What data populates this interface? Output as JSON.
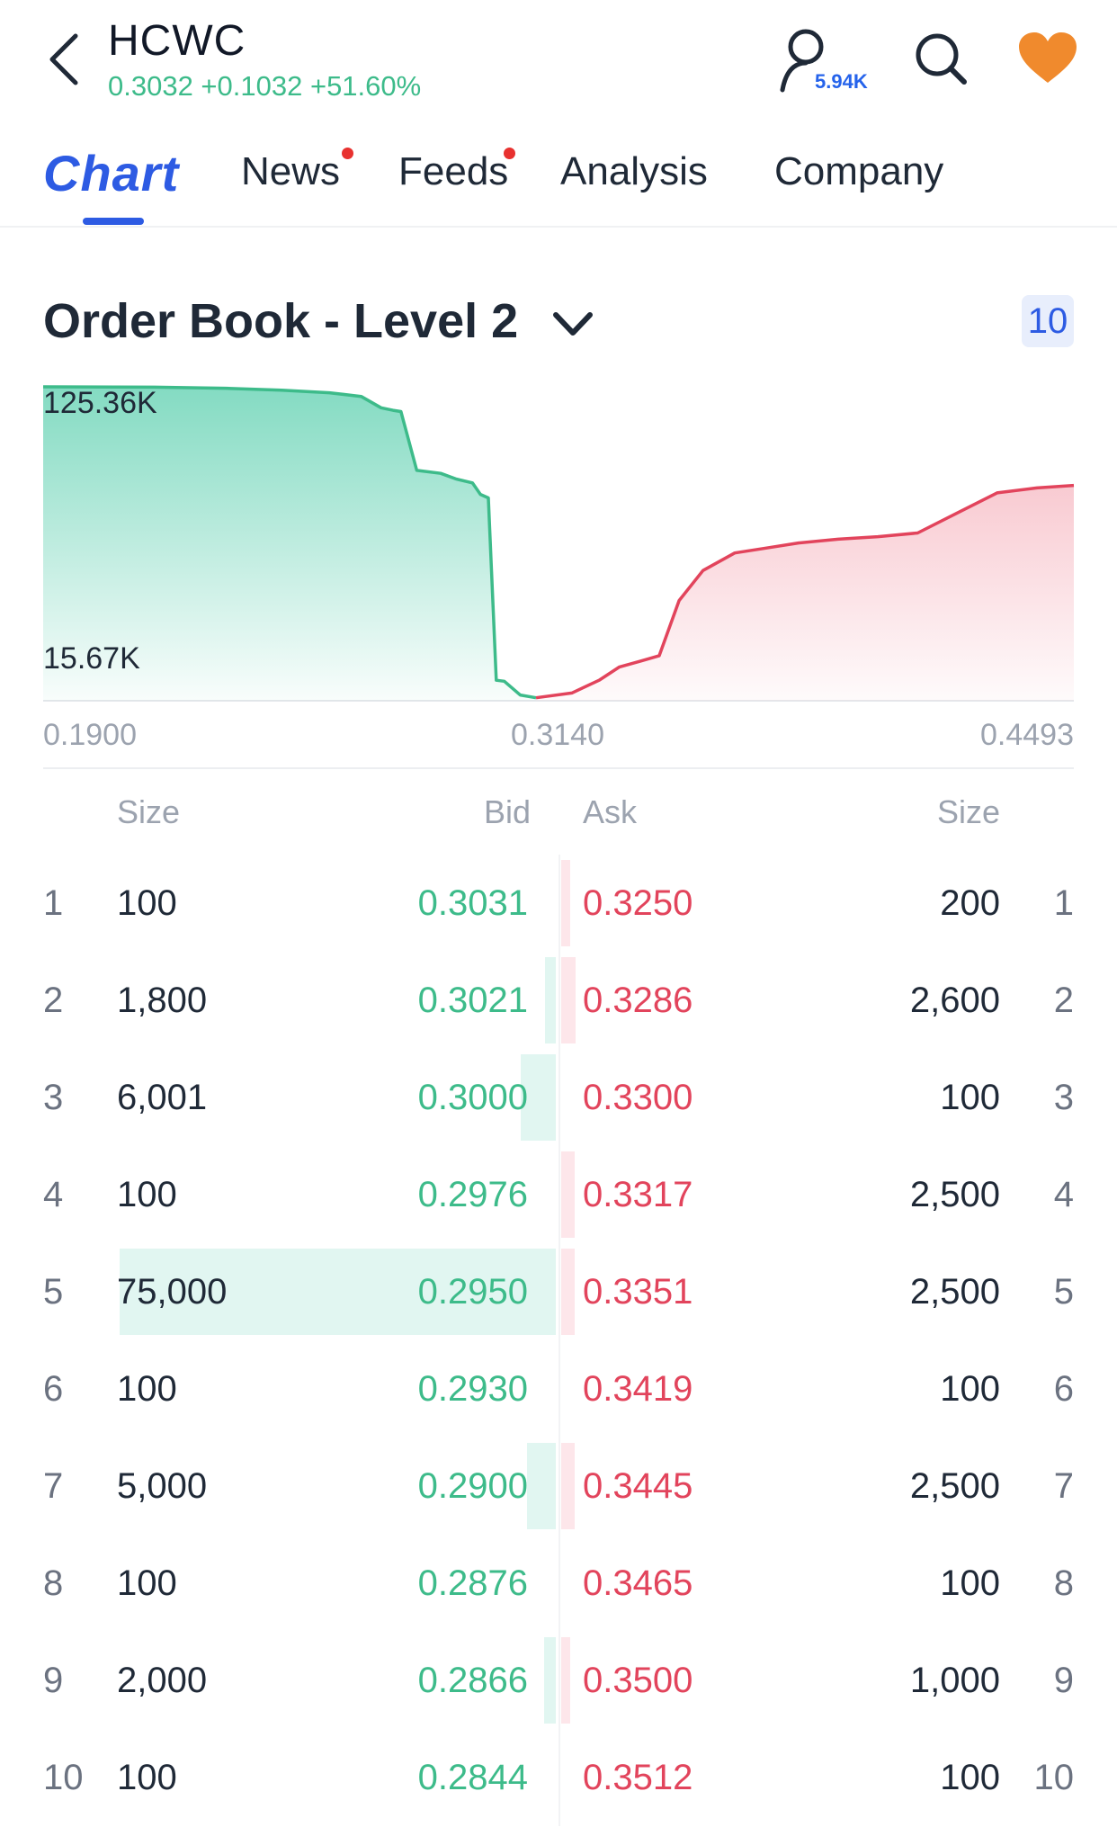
{
  "header": {
    "ticker": "HCWC",
    "quote": "0.3032 +0.1032 +51.60%",
    "followers": "5.94K",
    "quote_color": "#3dbb8a",
    "heart_color": "#f08a2d",
    "back_icon": "chevron-left-icon",
    "follow_icon": "person-icon",
    "search_icon": "search-icon",
    "favorite_icon": "heart-icon"
  },
  "tabs": [
    {
      "label": "Chart",
      "active": true
    },
    {
      "label": "News",
      "dot": true
    },
    {
      "label": "Feeds",
      "dot": true
    },
    {
      "label": "Analysis"
    },
    {
      "label": "Company"
    }
  ],
  "order_book": {
    "title": "Order Book - Level 2",
    "depth": "10",
    "y_top_label": "125.36K",
    "y_bottom_label": "15.67K",
    "x_labels": [
      "0.1900",
      "0.3140",
      "0.4493"
    ],
    "columns": {
      "size_left": "Size",
      "bid": "Bid",
      "ask": "Ask",
      "size_right": "Size"
    },
    "rows": [
      {
        "rank": "1",
        "bid_size": "100",
        "bid": "0.3031",
        "ask": "0.3250",
        "ask_size": "200"
      },
      {
        "rank": "2",
        "bid_size": "1,800",
        "bid": "0.3021",
        "ask": "0.3286",
        "ask_size": "2,600"
      },
      {
        "rank": "3",
        "bid_size": "6,001",
        "bid": "0.3000",
        "ask": "0.3300",
        "ask_size": "100"
      },
      {
        "rank": "4",
        "bid_size": "100",
        "bid": "0.2976",
        "ask": "0.3317",
        "ask_size": "2,500"
      },
      {
        "rank": "5",
        "bid_size": "75,000",
        "bid": "0.2950",
        "ask": "0.3351",
        "ask_size": "2,500"
      },
      {
        "rank": "6",
        "bid_size": "100",
        "bid": "0.2930",
        "ask": "0.3419",
        "ask_size": "100"
      },
      {
        "rank": "7",
        "bid_size": "5,000",
        "bid": "0.2900",
        "ask": "0.3445",
        "ask_size": "2,500"
      },
      {
        "rank": "8",
        "bid_size": "100",
        "bid": "0.2876",
        "ask": "0.3465",
        "ask_size": "100"
      },
      {
        "rank": "9",
        "bid_size": "2,000",
        "bid": "0.2866",
        "ask": "0.3500",
        "ask_size": "1,000"
      },
      {
        "rank": "10",
        "bid_size": "100",
        "bid": "0.2844",
        "ask": "0.3512",
        "ask_size": "100"
      }
    ],
    "bid_color": "#3dbb8a",
    "ask_color": "#e2445c"
  },
  "chart_data": {
    "type": "area",
    "title": "",
    "xlabel": "",
    "ylabel": "",
    "xlim": [
      0.19,
      0.4493
    ],
    "x_ticks": [
      0.19,
      0.314,
      0.4493
    ],
    "y_tick_labels": [
      "125.36K",
      "15.67K"
    ],
    "series": [
      {
        "side": "bid",
        "color": "#3dbb8a",
        "x": [
          0.19,
          0.218,
          0.236,
          0.25,
          0.262,
          0.27,
          0.275,
          0.278,
          0.28,
          0.284,
          0.29,
          0.294,
          0.298,
          0.3,
          0.302,
          0.304,
          0.306,
          0.31,
          0.314
        ],
        "y": [
          125360,
          125200,
          124800,
          124000,
          123000,
          121500,
          117000,
          116000,
          115500,
          92000,
          90800,
          88500,
          87000,
          82400,
          81000,
          8200,
          7800,
          2300,
          1200
        ]
      },
      {
        "side": "ask",
        "color": "#e2445c",
        "x": [
          0.314,
          0.323,
          0.33,
          0.335,
          0.34,
          0.345,
          0.35,
          0.356,
          0.364,
          0.372,
          0.38,
          0.39,
          0.4,
          0.41,
          0.42,
          0.43,
          0.44,
          0.4493
        ],
        "y": [
          1200,
          3100,
          8300,
          13500,
          15700,
          18000,
          40000,
          52000,
          59000,
          61000,
          63000,
          64500,
          65500,
          67000,
          75000,
          83000,
          85000,
          86000
        ]
      }
    ]
  }
}
